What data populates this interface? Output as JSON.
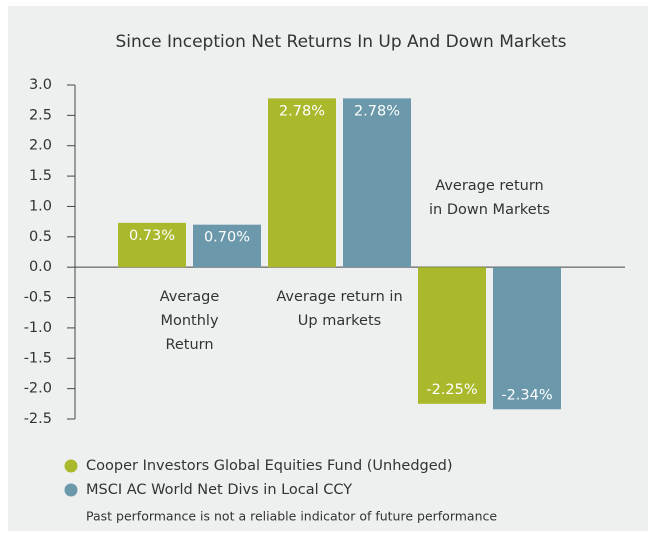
{
  "chart_data": {
    "type": "bar",
    "title": "Since Inception Net Returns In Up And Down Markets",
    "categories": [
      "Average Monthly Return",
      "Average return in Up markets",
      "Average return in Down Markets"
    ],
    "series": [
      {
        "name": "Cooper Investors Global Equities Fund (Unhedged)",
        "color": "#a9b92b",
        "values": [
          0.73,
          2.78,
          -2.25
        ],
        "value_labels": [
          "0.73%",
          "2.78%",
          "-2.25%"
        ]
      },
      {
        "name": "MSCI AC World Net Divs in Local CCY",
        "color": "#6b98aa",
        "values": [
          0.7,
          2.78,
          -2.34
        ],
        "value_labels": [
          "0.70%",
          "2.78%",
          "-2.34%"
        ]
      }
    ],
    "ylim": [
      -2.5,
      3.0
    ],
    "yticks": [
      {
        "value": 3.0,
        "label": "3.0"
      },
      {
        "value": 2.5,
        "label": "2.5"
      },
      {
        "value": 2.0,
        "label": "2.0"
      },
      {
        "value": 1.5,
        "label": "1.5"
      },
      {
        "value": 1.0,
        "label": "1.0"
      },
      {
        "value": 0.5,
        "label": "0.5"
      },
      {
        "value": 0,
        "label": "0.0"
      },
      {
        "value": -0.5,
        "label": "-0.5"
      },
      {
        "value": -1.0,
        "label": "-1.0"
      },
      {
        "value": -1.5,
        "label": "-1.5"
      },
      {
        "value": -2.0,
        "label": "-2.0"
      },
      {
        "value": -2.5,
        "label": "-2.5"
      }
    ],
    "footnote": "Past performance is not a reliable indicator of future performance"
  }
}
